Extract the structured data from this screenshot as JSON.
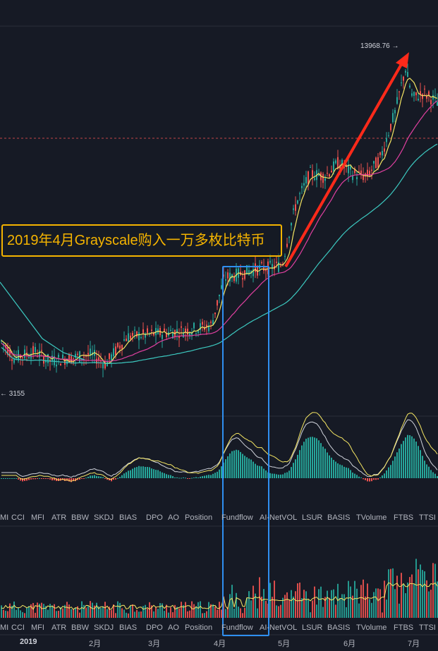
{
  "annotation": "2019年4月Grayscale购入一万多枚比特币",
  "price_high_label": "13968.76",
  "price_high_arrow": "→",
  "price_low_label": "3155",
  "price_low_arrow": "←",
  "indicator_tabs_top": [
    "MI",
    "CCI",
    "MFI",
    "ATR",
    "BBW",
    "SKDJ",
    "BIAS",
    "DPO",
    "AO",
    "Position",
    "Fundflow",
    "AI-NetVOL",
    "LSUR",
    "BASIS",
    "TVolume",
    "FTBS",
    "TTSI"
  ],
  "indicator_tabs_bottom": [
    "MI",
    "CCI",
    "MFI",
    "ATR",
    "BBW",
    "SKDJ",
    "BIAS",
    "DPO",
    "AO",
    "Position",
    "Fundflow",
    "AI-NetVOL",
    "LSUR",
    "BASIS",
    "TVolume",
    "FTBS",
    "TTSI"
  ],
  "x_axis": [
    "2019",
    "2月",
    "3月",
    "4月",
    "5月",
    "6月",
    "7月"
  ],
  "colors": {
    "background": "#161a25",
    "up": "#26a69a",
    "down": "#ef5350",
    "ma_short": "#f5e663",
    "ma_mid": "#e040a0",
    "ma_long": "#3cc9c0",
    "annotation": "#f5b400",
    "highlight": "#2f8ff0",
    "trend_arrow": "#ff2a1a"
  },
  "chart_data": {
    "type": "candlestick",
    "period": "2019-01 to 2019-07",
    "price_high": 13968.76,
    "price_low": 3155,
    "approx_trend": [
      {
        "month": "2019-01",
        "price": 3600
      },
      {
        "month": "2019-02",
        "price": 3700
      },
      {
        "month": "2019-03",
        "price": 3950
      },
      {
        "month": "2019-04",
        "price": 5200
      },
      {
        "month": "2019-05",
        "price": 8500
      },
      {
        "month": "2019-06",
        "price": 10800
      },
      {
        "month": "2019-07",
        "price": 11500
      }
    ],
    "highlight_range": [
      "2019-04",
      "2019-04"
    ]
  }
}
